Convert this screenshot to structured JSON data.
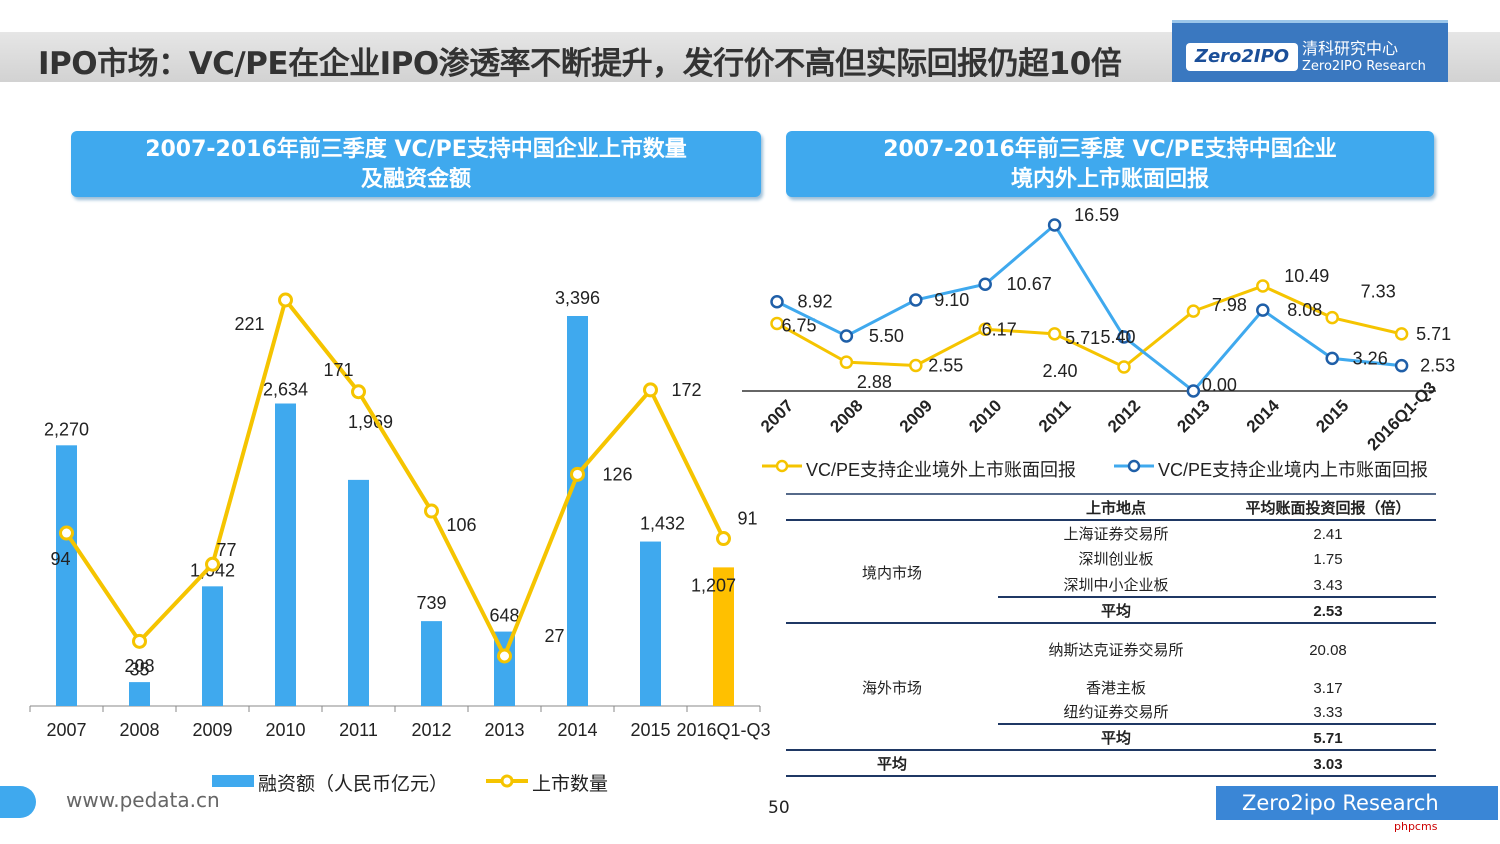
{
  "title": "IPO市场：VC/PE在企业IPO渗透率不断提升，发行价不高但实际回报仍超10倍",
  "logo": {
    "mark": "Zero2IPO",
    "cn": "清科研究中心",
    "en": "Zero2IPO Research"
  },
  "panels": {
    "left_title_1": "2007-2016年前三季度 VC/PE支持中国企业上市数量",
    "left_title_2": "及融资金额",
    "right_title_1": "2007-2016年前三季度 VC/PE支持中国企业",
    "right_title_2": "境内外上市账面回报"
  },
  "chart_data": [
    {
      "type": "bar",
      "categories": [
        "2007",
        "2008",
        "2009",
        "2010",
        "2011",
        "2012",
        "2013",
        "2014",
        "2015",
        "2016Q1-Q3"
      ],
      "series": [
        {
          "name": "融资额（人民币亿元）",
          "type": "bar",
          "values": [
            2270,
            208,
            1042,
            2634,
            1969,
            739,
            648,
            3396,
            1432,
            1207
          ],
          "labels": [
            "2,270",
            "208",
            "1,042",
            "2,634",
            "1,969",
            "739",
            "648",
            "3,396",
            "1,432",
            "1,207"
          ],
          "color": "#3fa9ee",
          "last_color": "#ffc000"
        },
        {
          "name": "上市数量",
          "type": "line",
          "values": [
            94,
            35,
            77,
            221,
            171,
            106,
            27,
            126,
            172,
            91
          ],
          "labels": [
            "94",
            "35",
            "77",
            "221",
            "171",
            "106",
            "27",
            "126",
            "172",
            "91"
          ],
          "color": "#f5c400"
        }
      ]
    },
    {
      "type": "line",
      "categories": [
        "2007",
        "2008",
        "2009",
        "2010",
        "2011",
        "2012",
        "2013",
        "2014",
        "2015",
        "2016Q1-Q3"
      ],
      "series": [
        {
          "name": "VC/PE支持企业境外上市账面回报",
          "values": [
            6.75,
            2.88,
            2.55,
            6.17,
            5.71,
            2.4,
            7.98,
            10.49,
            7.33,
            5.71
          ],
          "labels": [
            "6.75",
            "2.88",
            "2.55",
            "6.17",
            "5.71",
            "2.40",
            "7.98",
            "10.49",
            "7.33",
            "5.71"
          ],
          "color": "#f5c400"
        },
        {
          "name": "VC/PE支持企业境内上市账面回报",
          "values": [
            8.92,
            5.5,
            9.1,
            10.67,
            16.59,
            5.4,
            0.0,
            8.08,
            3.26,
            2.53
          ],
          "labels": [
            "8.92",
            "5.50",
            "9.10",
            "10.67",
            "16.59",
            "5.40",
            "0.00",
            "8.08",
            "3.26",
            "2.53"
          ],
          "color": "#3fa9ee"
        }
      ]
    },
    {
      "type": "table",
      "headers": [
        "上市地点",
        "平均账面投资回报（倍）"
      ],
      "groups": [
        {
          "name": "境内市场",
          "rows": [
            [
              "上海证券交易所",
              "2.41"
            ],
            [
              "深圳创业板",
              "1.75"
            ],
            [
              "深圳中小企业板",
              "3.43"
            ]
          ],
          "avg_label": "平均",
          "avg": "2.53"
        },
        {
          "name": "海外市场",
          "rows": [
            [
              "纳斯达克证券交易所",
              "20.08"
            ],
            [
              "香港主板",
              "3.17"
            ],
            [
              "纽约证券交易所",
              "3.33"
            ]
          ],
          "avg_label": "平均",
          "avg": "5.71"
        }
      ],
      "total_label": "平均",
      "total": "3.03"
    }
  ],
  "footer": {
    "url": "www.pedata.cn",
    "page": "50",
    "brand": "Zero2ipo Research",
    "note": "phpcms"
  }
}
